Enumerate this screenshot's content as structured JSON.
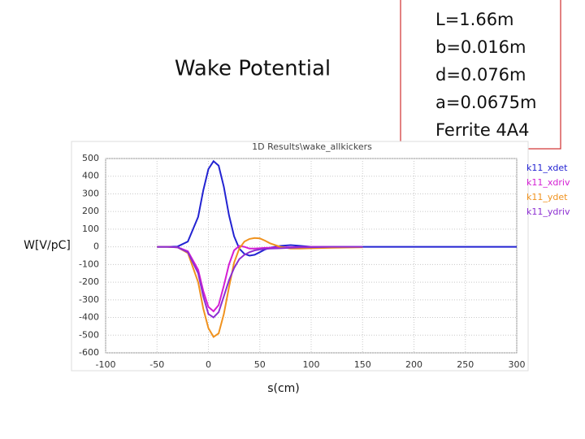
{
  "chart_data": {
    "type": "line",
    "slide_title": "Wake Potential",
    "title": "1D Results\\wake_allkickers",
    "annotations": [
      "L=1.66m",
      "b=0.016m",
      "d=0.076m",
      "a=0.0675m",
      "Ferrite 4A4"
    ],
    "ylabel": "W[V/pC]",
    "xlabel": "s(cm)",
    "x": [
      -50,
      -40,
      -30,
      -20,
      -10,
      -5,
      0,
      5,
      10,
      15,
      20,
      25,
      30,
      35,
      40,
      45,
      50,
      55,
      60,
      70,
      80,
      90,
      100,
      120,
      150,
      200,
      250,
      300
    ],
    "series": [
      {
        "name": "k11_xdet",
        "color": "#2323d2",
        "values": [
          0,
          0,
          2,
          30,
          170,
          320,
          440,
          485,
          460,
          340,
          180,
          60,
          -10,
          -40,
          -50,
          -45,
          -30,
          -15,
          -5,
          5,
          10,
          5,
          0,
          0,
          0,
          0,
          0,
          0
        ]
      },
      {
        "name": "k11_xdriv",
        "color": "#d41ed4",
        "values": [
          0,
          0,
          -2,
          -25,
          -130,
          -250,
          -340,
          -365,
          -330,
          -220,
          -100,
          -20,
          5,
          0,
          -10,
          -10,
          -8,
          -6,
          -5,
          -3,
          -2,
          -1,
          0,
          0,
          0,
          null,
          null,
          null
        ]
      },
      {
        "name": "k11_ydet",
        "color": "#f0921e",
        "values": [
          0,
          0,
          -3,
          -35,
          -200,
          -350,
          -460,
          -510,
          -490,
          -380,
          -230,
          -90,
          -10,
          30,
          45,
          50,
          48,
          35,
          20,
          0,
          -10,
          -10,
          -8,
          -5,
          -2,
          null,
          null,
          null
        ]
      },
      {
        "name": "k11_ydriv",
        "color": "#8c2ed2",
        "values": [
          0,
          0,
          -3,
          -30,
          -150,
          -280,
          -380,
          -400,
          -370,
          -280,
          -190,
          -120,
          -70,
          -45,
          -30,
          -20,
          -15,
          -12,
          -10,
          -8,
          -5,
          -3,
          -2,
          0,
          0,
          null,
          null,
          null
        ]
      }
    ],
    "xlim": [
      -100,
      300
    ],
    "ylim": [
      -600,
      500
    ],
    "xticks": [
      -100,
      -50,
      0,
      50,
      100,
      150,
      200,
      250,
      300
    ],
    "yticks": [
      -600,
      -500,
      -400,
      -300,
      -200,
      -100,
      0,
      100,
      200,
      300,
      400,
      500
    ],
    "grid": true
  }
}
